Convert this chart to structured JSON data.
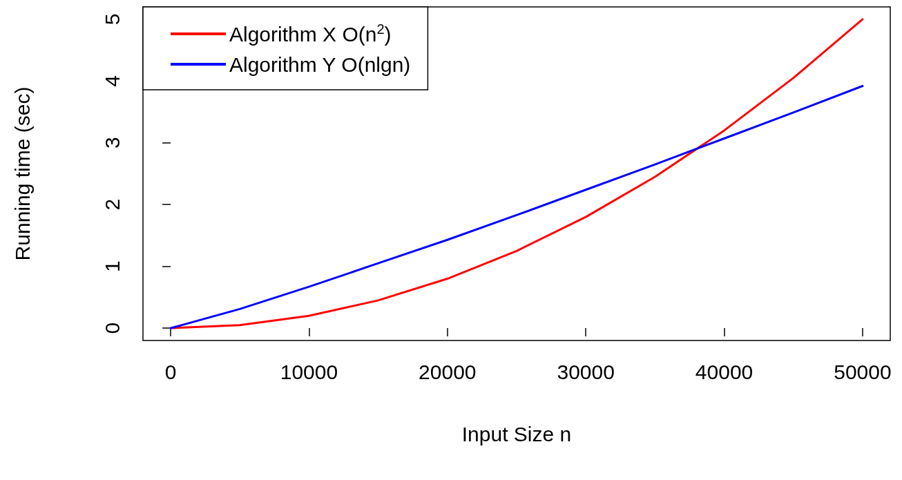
{
  "chart_data": {
    "type": "line",
    "xlabel": "Input Size n",
    "ylabel": "Running time (sec)",
    "x": [
      0,
      5000,
      10000,
      15000,
      20000,
      25000,
      30000,
      35000,
      40000,
      45000,
      50000
    ],
    "series": [
      {
        "name": "Algorithm X O(n$^{2}$)",
        "color": "#ff0000",
        "values": [
          0,
          0.05,
          0.2,
          0.45,
          0.8,
          1.25,
          1.8,
          2.45,
          3.2,
          4.05,
          5
        ]
      },
      {
        "name": "Algorithm Y O(nlgn)",
        "color": "#0000ff",
        "values": [
          0,
          0.31,
          0.67,
          1.05,
          1.43,
          1.83,
          2.24,
          2.65,
          3.07,
          3.49,
          3.92
        ]
      }
    ],
    "xlim": [
      -2000,
      52000
    ],
    "xticks": [
      0,
      10000,
      20000,
      30000,
      40000,
      50000
    ],
    "ylim": [
      -0.2,
      5.2
    ],
    "yticks": [
      0,
      1,
      2,
      3,
      4,
      5
    ],
    "grid": false,
    "legend": "top left",
    "marker": "none",
    "line_style": "solid"
  }
}
